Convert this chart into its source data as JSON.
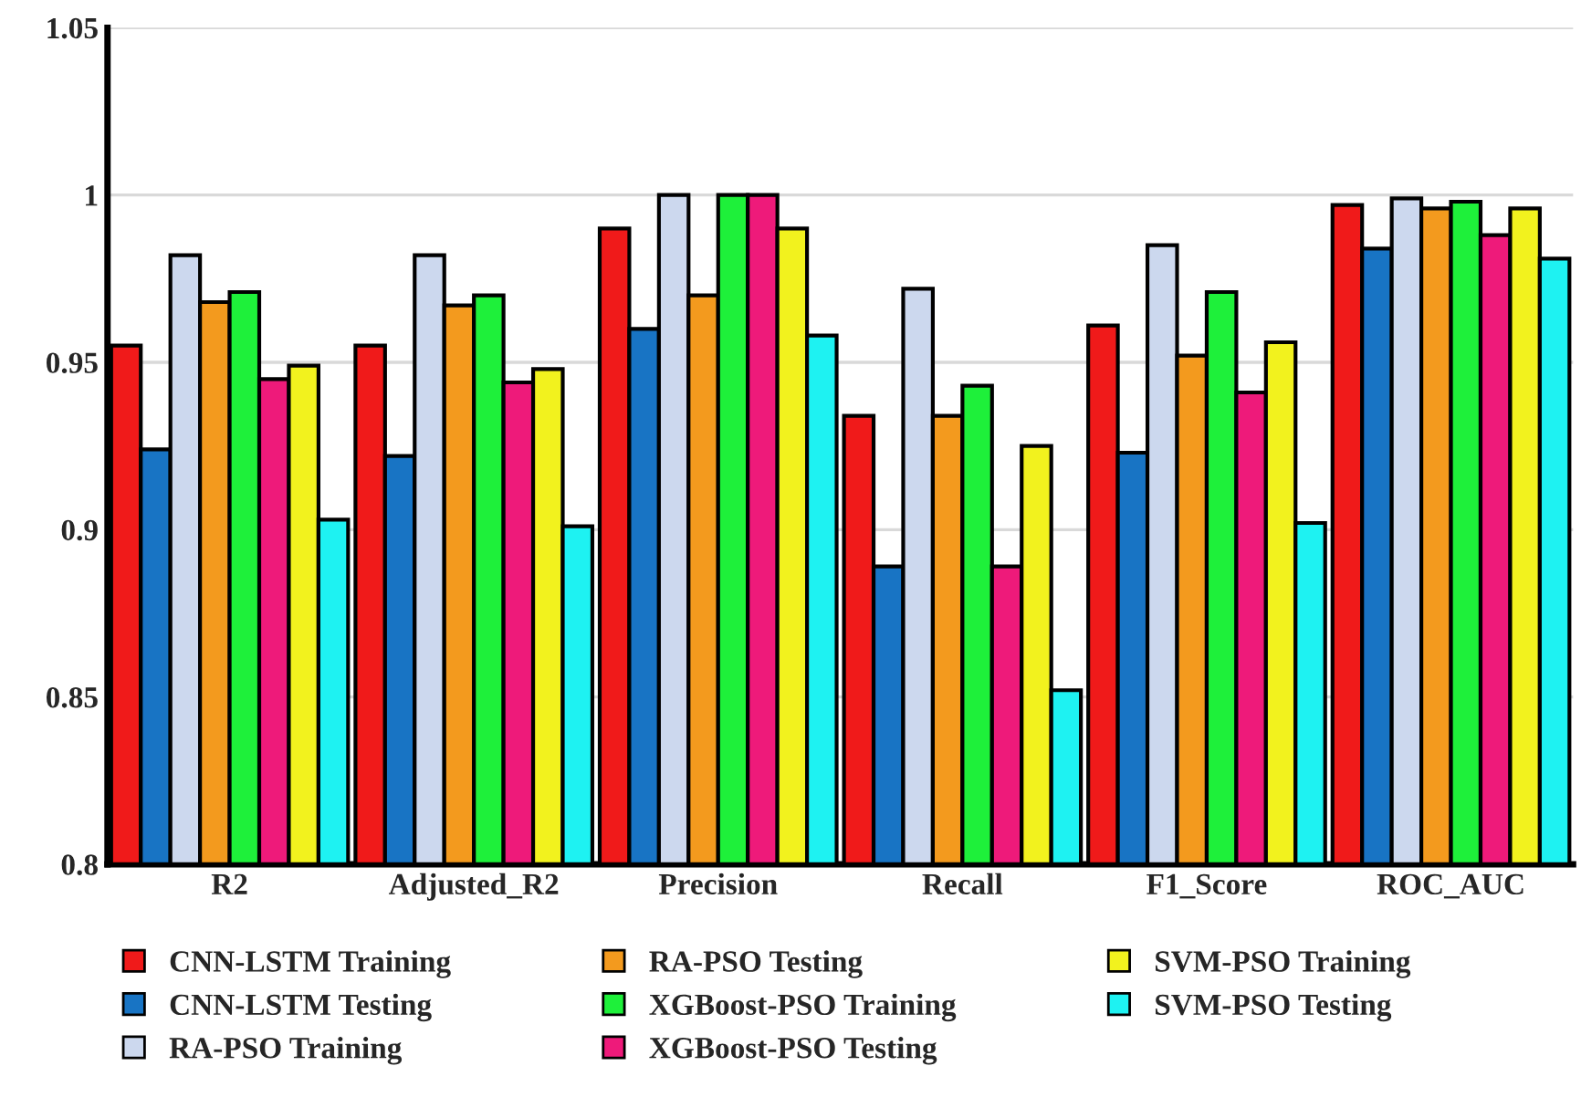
{
  "chart_data": {
    "type": "bar",
    "categories": [
      "R2",
      "Adjusted_R2",
      "Precision",
      "Recall",
      "F1_Score",
      "ROC_AUC"
    ],
    "series": [
      {
        "name": "CNN-LSTM Training",
        "color": "#f01a1a",
        "values": [
          0.955,
          0.955,
          0.99,
          0.934,
          0.961,
          0.997
        ]
      },
      {
        "name": "CNN-LSTM Testing",
        "color": "#1874c4",
        "values": [
          0.924,
          0.922,
          0.96,
          0.889,
          0.923,
          0.984
        ]
      },
      {
        "name": "RA-PSO Training",
        "color": "#ccd8ee",
        "values": [
          0.982,
          0.982,
          1.0,
          0.972,
          0.985,
          0.999
        ]
      },
      {
        "name": "RA-PSO Testing",
        "color": "#f39a1e",
        "values": [
          0.968,
          0.967,
          0.97,
          0.934,
          0.952,
          0.996
        ]
      },
      {
        "name": "XGBoost-PSO Training",
        "color": "#1ef03a",
        "values": [
          0.971,
          0.97,
          1.0,
          0.943,
          0.971,
          0.998
        ]
      },
      {
        "name": "XGBoost-PSO Testing",
        "color": "#ee1a7a",
        "values": [
          0.945,
          0.944,
          1.0,
          0.889,
          0.941,
          0.988
        ]
      },
      {
        "name": "SVM-PSO Training",
        "color": "#f2f21e",
        "values": [
          0.949,
          0.948,
          0.99,
          0.925,
          0.956,
          0.996
        ]
      },
      {
        "name": "SVM-PSO Testing",
        "color": "#1ef2f2",
        "values": [
          0.903,
          0.901,
          0.958,
          0.852,
          0.902,
          0.981
        ]
      }
    ],
    "ylim": [
      0.8,
      1.05
    ],
    "yticks": [
      0.8,
      0.85,
      0.9,
      0.95,
      1,
      1.05
    ],
    "grid": "y",
    "legend": "bottom"
  }
}
